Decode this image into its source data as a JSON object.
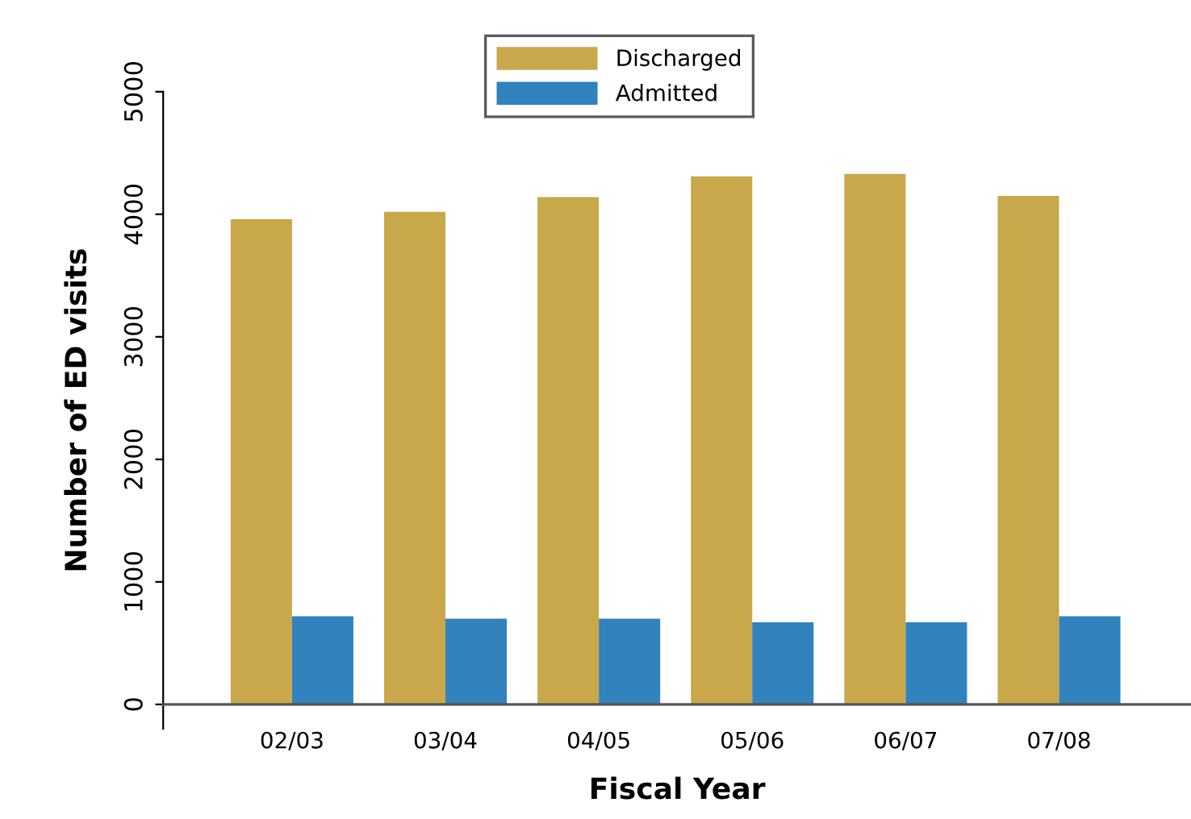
{
  "chart_data": {
    "type": "bar",
    "xlabel": "Fiscal Year",
    "ylabel": "Number of ED visits",
    "categories": [
      "02/03",
      "03/04",
      "04/05",
      "05/06",
      "06/07",
      "07/08"
    ],
    "series": [
      {
        "name": "Discharged",
        "color": "#c8a84a",
        "values": [
          3960,
          4020,
          4140,
          4310,
          4330,
          4150
        ]
      },
      {
        "name": "Admitted",
        "color": "#3182bd",
        "values": [
          720,
          700,
          700,
          670,
          670,
          720
        ]
      }
    ],
    "ylim": [
      -200,
      5000
    ],
    "yticks": [
      0,
      1000,
      2000,
      3000,
      4000,
      5000
    ],
    "grid": false,
    "legend": "top"
  }
}
